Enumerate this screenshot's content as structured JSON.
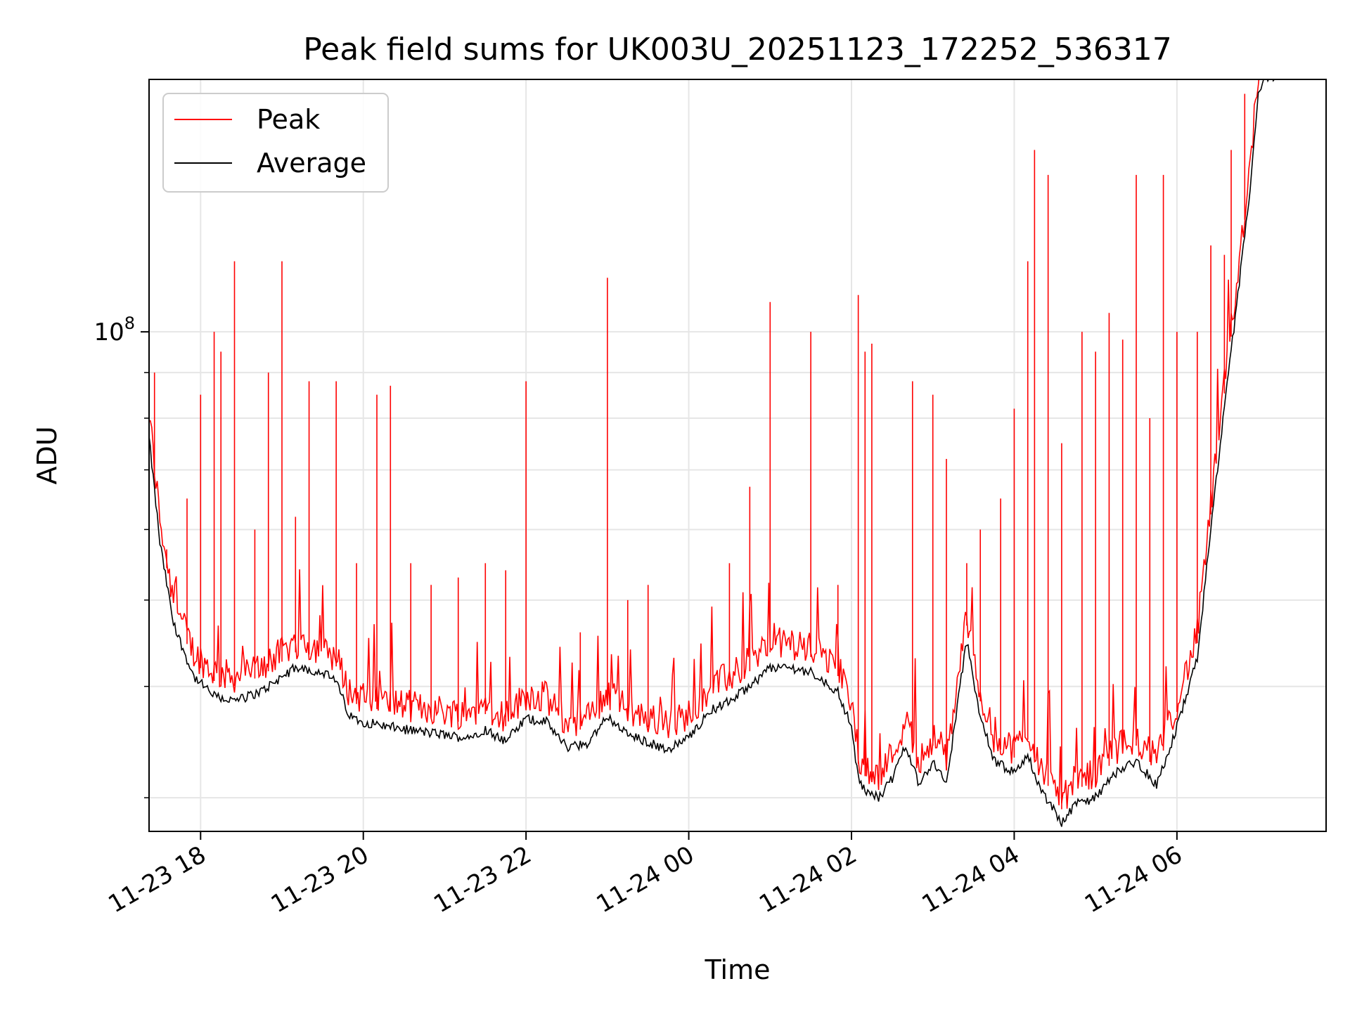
{
  "chart_data": {
    "type": "line",
    "title": "Peak field sums for UK003U_20251123_172252_536317",
    "xlabel": "Time",
    "ylabel": "ADU",
    "y_scale": "log",
    "ylim": [
      27500000,
      192000000
    ],
    "xlim": [
      "2025-11-23 17:22",
      "2025-11-24 07:50"
    ],
    "x_ticks": [
      {
        "t": "2025-11-23 18:00",
        "label": "11-23 18"
      },
      {
        "t": "2025-11-23 20:00",
        "label": "11-23 20"
      },
      {
        "t": "2025-11-23 22:00",
        "label": "11-23 22"
      },
      {
        "t": "2025-11-24 00:00",
        "label": "11-24 00"
      },
      {
        "t": "2025-11-24 02:00",
        "label": "11-24 02"
      },
      {
        "t": "2025-11-24 04:00",
        "label": "11-24 04"
      },
      {
        "t": "2025-11-24 06:00",
        "label": "11-24 06"
      }
    ],
    "y_major_ticks": [
      {
        "value": 100000000,
        "base": "10",
        "exp": "8"
      }
    ],
    "y_minor_ticks": [
      30000000,
      40000000,
      50000000,
      60000000,
      70000000,
      80000000,
      90000000,
      200000000
    ],
    "grid": true,
    "legend_position": "top-left",
    "colors": {
      "peak": "#ff0000",
      "average": "#000000"
    },
    "series": [
      {
        "name": "Average",
        "color": "#000000",
        "points": [
          [
            "2025-11-23 17:22",
            76000000
          ],
          [
            "2025-11-23 17:30",
            58000000
          ],
          [
            "2025-11-23 17:40",
            47000000
          ],
          [
            "2025-11-23 17:55",
            41000000
          ],
          [
            "2025-11-23 18:10",
            39000000
          ],
          [
            "2025-11-23 18:25",
            38500000
          ],
          [
            "2025-11-23 18:45",
            39500000
          ],
          [
            "2025-11-23 19:00",
            41000000
          ],
          [
            "2025-11-23 19:10",
            42000000
          ],
          [
            "2025-11-23 19:30",
            41500000
          ],
          [
            "2025-11-23 19:40",
            40500000
          ],
          [
            "2025-11-23 19:50",
            37000000
          ],
          [
            "2025-11-23 20:00",
            36500000
          ],
          [
            "2025-11-23 20:30",
            35800000
          ],
          [
            "2025-11-23 21:00",
            35300000
          ],
          [
            "2025-11-23 21:15",
            35000000
          ],
          [
            "2025-11-23 21:30",
            35800000
          ],
          [
            "2025-11-23 21:45",
            34700000
          ],
          [
            "2025-11-23 22:00",
            36800000
          ],
          [
            "2025-11-23 22:15",
            36500000
          ],
          [
            "2025-11-23 22:30",
            34200000
          ],
          [
            "2025-11-23 22:45",
            34500000
          ],
          [
            "2025-11-23 23:00",
            37000000
          ],
          [
            "2025-11-23 23:15",
            35300000
          ],
          [
            "2025-11-23 23:30",
            34600000
          ],
          [
            "2025-11-23 23:45",
            34000000
          ],
          [
            "2025-11-24 00:00",
            35000000
          ],
          [
            "2025-11-24 00:15",
            37500000
          ],
          [
            "2025-11-24 00:30",
            38500000
          ],
          [
            "2025-11-24 00:45",
            40000000
          ],
          [
            "2025-11-24 01:00",
            42000000
          ],
          [
            "2025-11-24 01:15",
            42000000
          ],
          [
            "2025-11-24 01:30",
            41500000
          ],
          [
            "2025-11-24 01:40",
            40500000
          ],
          [
            "2025-11-24 01:50",
            39500000
          ],
          [
            "2025-11-24 02:00",
            36000000
          ],
          [
            "2025-11-24 02:05",
            31500000
          ],
          [
            "2025-11-24 02:10",
            30500000
          ],
          [
            "2025-11-24 02:20",
            30000000
          ],
          [
            "2025-11-24 02:30",
            31500000
          ],
          [
            "2025-11-24 02:40",
            34500000
          ],
          [
            "2025-11-24 02:50",
            31000000
          ],
          [
            "2025-11-24 03:00",
            33000000
          ],
          [
            "2025-11-24 03:10",
            31000000
          ],
          [
            "2025-11-24 03:20",
            40000000
          ],
          [
            "2025-11-24 03:25",
            45000000
          ],
          [
            "2025-11-24 03:35",
            37000000
          ],
          [
            "2025-11-24 03:45",
            33000000
          ],
          [
            "2025-11-24 04:00",
            32000000
          ],
          [
            "2025-11-24 04:10",
            33500000
          ],
          [
            "2025-11-24 04:20",
            30500000
          ],
          [
            "2025-11-24 04:30",
            29000000
          ],
          [
            "2025-11-24 04:35",
            28000000
          ],
          [
            "2025-11-24 04:45",
            29500000
          ],
          [
            "2025-11-24 05:00",
            30000000
          ],
          [
            "2025-11-24 05:15",
            32000000
          ],
          [
            "2025-11-24 05:30",
            33000000
          ],
          [
            "2025-11-24 05:45",
            31000000
          ],
          [
            "2025-11-24 06:00",
            36000000
          ],
          [
            "2025-11-24 06:15",
            43000000
          ],
          [
            "2025-11-24 06:25",
            60000000
          ],
          [
            "2025-11-24 06:35",
            82000000
          ],
          [
            "2025-11-24 06:45",
            110000000
          ],
          [
            "2025-11-24 06:55",
            150000000
          ],
          [
            "2025-11-24 07:00",
            185000000
          ],
          [
            "2025-11-24 07:05",
            192000000
          ],
          [
            "2025-11-24 07:15",
            192000000
          ]
        ]
      },
      {
        "name": "Peak",
        "color": "#ff0000",
        "noise_floor": "Average + 2% to 20%",
        "spikes": [
          [
            "2025-11-23 17:26",
            90000000
          ],
          [
            "2025-11-23 17:35",
            57000000
          ],
          [
            "2025-11-23 17:50",
            65000000
          ],
          [
            "2025-11-23 18:00",
            85000000
          ],
          [
            "2025-11-23 18:10",
            100000000
          ],
          [
            "2025-11-23 18:15",
            95000000
          ],
          [
            "2025-11-23 18:25",
            120000000
          ],
          [
            "2025-11-23 18:40",
            60000000
          ],
          [
            "2025-11-23 18:50",
            90000000
          ],
          [
            "2025-11-23 19:00",
            120000000
          ],
          [
            "2025-11-23 19:10",
            62000000
          ],
          [
            "2025-11-23 19:20",
            88000000
          ],
          [
            "2025-11-23 19:40",
            88000000
          ],
          [
            "2025-11-23 19:55",
            55000000
          ],
          [
            "2025-11-23 20:10",
            85000000
          ],
          [
            "2025-11-23 20:20",
            87000000
          ],
          [
            "2025-11-23 20:35",
            55000000
          ],
          [
            "2025-11-23 20:50",
            52000000
          ],
          [
            "2025-11-23 21:10",
            53000000
          ],
          [
            "2025-11-23 21:30",
            55000000
          ],
          [
            "2025-11-23 21:45",
            54000000
          ],
          [
            "2025-11-23 22:00",
            88000000
          ],
          [
            "2025-11-23 22:40",
            46000000
          ],
          [
            "2025-11-23 23:00",
            115000000
          ],
          [
            "2025-11-23 23:15",
            50000000
          ],
          [
            "2025-11-23 23:30",
            52000000
          ],
          [
            "2025-11-24 00:30",
            55000000
          ],
          [
            "2025-11-24 00:45",
            67000000
          ],
          [
            "2025-11-24 01:00",
            108000000
          ],
          [
            "2025-11-24 01:30",
            100000000
          ],
          [
            "2025-11-24 01:50",
            52000000
          ],
          [
            "2025-11-24 02:05",
            110000000
          ],
          [
            "2025-11-24 02:10",
            95000000
          ],
          [
            "2025-11-24 02:15",
            97000000
          ],
          [
            "2025-11-24 02:45",
            88000000
          ],
          [
            "2025-11-24 03:00",
            85000000
          ],
          [
            "2025-11-24 03:10",
            72000000
          ],
          [
            "2025-11-24 03:25",
            55000000
          ],
          [
            "2025-11-24 03:35",
            60000000
          ],
          [
            "2025-11-24 03:50",
            65000000
          ],
          [
            "2025-11-24 04:00",
            82000000
          ],
          [
            "2025-11-24 04:10",
            120000000
          ],
          [
            "2025-11-24 04:15",
            160000000
          ],
          [
            "2025-11-24 04:25",
            150000000
          ],
          [
            "2025-11-24 04:35",
            75000000
          ],
          [
            "2025-11-24 04:50",
            100000000
          ],
          [
            "2025-11-24 05:00",
            95000000
          ],
          [
            "2025-11-24 05:10",
            105000000
          ],
          [
            "2025-11-24 05:20",
            98000000
          ],
          [
            "2025-11-24 05:30",
            150000000
          ],
          [
            "2025-11-24 05:40",
            80000000
          ],
          [
            "2025-11-24 05:50",
            150000000
          ],
          [
            "2025-11-24 06:00",
            100000000
          ],
          [
            "2025-11-24 06:15",
            100000000
          ],
          [
            "2025-11-24 06:25",
            125000000
          ],
          [
            "2025-11-24 06:35",
            122000000
          ],
          [
            "2025-11-24 06:40",
            160000000
          ],
          [
            "2025-11-24 06:50",
            185000000
          ],
          [
            "2025-11-24 07:00",
            192000000
          ]
        ]
      }
    ]
  }
}
